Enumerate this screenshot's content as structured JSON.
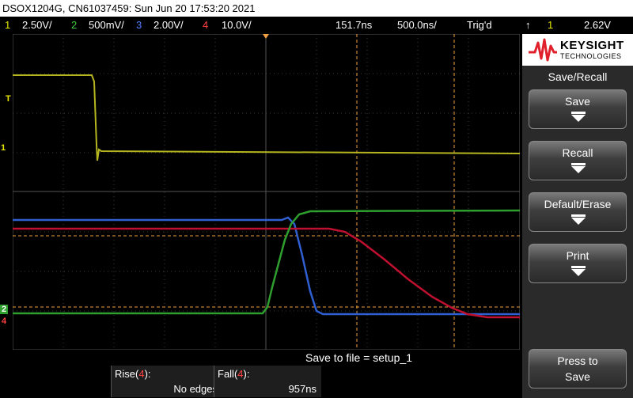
{
  "title": "DSOX1204G, CN61037459: Sun Jun 20 17:53:20 2021",
  "status": {
    "ch1_num": "1",
    "ch1_scale": "2.50V/",
    "ch2_num": "2",
    "ch2_scale": "500mV/",
    "ch3_num": "3",
    "ch3_scale": "2.00V/",
    "ch4_num": "4",
    "ch4_scale": "10.0V/",
    "time_delay": "151.7ns",
    "time_scale": "500.0ns/",
    "trig_status": "Trig'd",
    "trig_icon": "trigger-edge-icon",
    "trig_source": "1",
    "trig_level": "2.62V"
  },
  "markers": {
    "trigger": "T",
    "ch1": "1",
    "ch2": "2",
    "ch4": "4"
  },
  "brand": {
    "name": "KEYSIGHT",
    "sub": "TECHNOLOGIES",
    "logo_color": "#e0202a"
  },
  "menu": {
    "title": "Save/Recall",
    "buttons": [
      {
        "label": "Save"
      },
      {
        "label": "Recall"
      },
      {
        "label": "Default/Erase"
      },
      {
        "label": "Print"
      }
    ],
    "press_line1": "Press to",
    "press_line2": "Save"
  },
  "message": "Save to file = setup_1",
  "measurements": [
    {
      "name": "Rise",
      "channel": "4",
      "value": "No edges"
    },
    {
      "name": "Fall",
      "channel": "4",
      "value": "957ns"
    }
  ],
  "colors": {
    "ch1": "#b5b51f",
    "ch2": "#2e9e2e",
    "ch3": "#2f5fd0",
    "ch4": "#c01030",
    "cursor": "#f0a040"
  }
}
